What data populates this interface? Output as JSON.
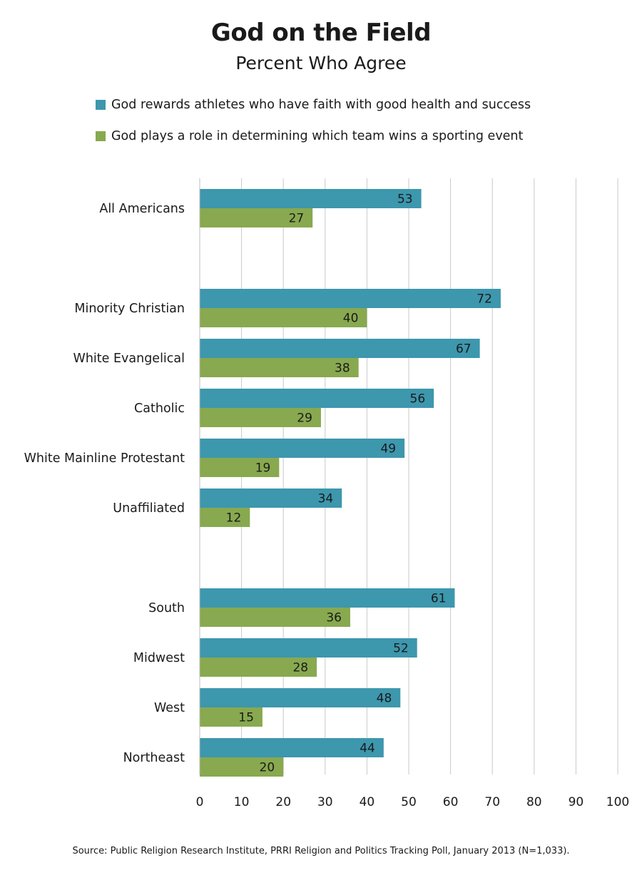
{
  "chart_data": {
    "type": "bar",
    "orientation": "horizontal",
    "title": "God on the Field",
    "subtitle": "Percent Who Agree",
    "categories": [
      "All Americans",
      "Minority Christian",
      "White Evangelical",
      "Catholic",
      "White Mainline Protestant",
      "Unaffiliated",
      "South",
      "Midwest",
      "West",
      "Northeast"
    ],
    "groups": [
      [
        "All Americans"
      ],
      [
        "Minority Christian",
        "White Evangelical",
        "Catholic",
        "White Mainline Protestant",
        "Unaffiliated"
      ],
      [
        "South",
        "Midwest",
        "West",
        "Northeast"
      ]
    ],
    "series": [
      {
        "name": "God rewards athletes who have faith with good health and success",
        "color": "#3d97ad",
        "values": [
          53,
          72,
          67,
          56,
          49,
          34,
          61,
          52,
          48,
          44
        ]
      },
      {
        "name": "God plays a role in determining which team wins a sporting event",
        "color": "#88a94f",
        "values": [
          27,
          40,
          38,
          29,
          19,
          12,
          36,
          28,
          15,
          20
        ]
      }
    ],
    "xlim": [
      0,
      100
    ],
    "xticks": [
      0,
      10,
      20,
      30,
      40,
      50,
      60,
      70,
      80,
      90,
      100
    ],
    "xlabel": "",
    "ylabel": "",
    "grid": true,
    "legend": "top",
    "data_labels": true,
    "source": "Source: Public Religion Research Institute, PRRI Religion and Politics Tracking Poll, January 2013 (N=1,033)."
  }
}
